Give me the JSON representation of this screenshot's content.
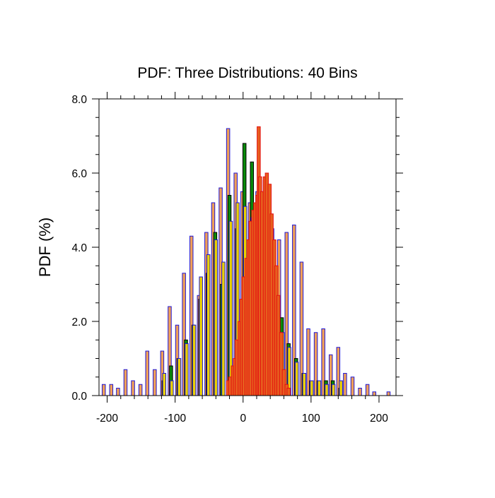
{
  "chart_data": {
    "type": "bar",
    "title": "PDF: Three Distributions: 40 Bins",
    "xlabel": "",
    "ylabel": "PDF (%)",
    "xlim": [
      -212,
      225
    ],
    "ylim": [
      0,
      8
    ],
    "x_ticks": [
      -200,
      -100,
      0,
      100,
      200
    ],
    "x_tick_labels": [
      "-200",
      "-100",
      "0",
      "100",
      "200"
    ],
    "y_ticks": [
      0,
      2,
      4,
      6,
      8
    ],
    "y_tick_labels": [
      "0.0",
      "2.0",
      "4.0",
      "6.0",
      "8.0"
    ],
    "legend": "none",
    "grid": false,
    "series": [
      {
        "fill": "#f0a057",
        "edge": "#1f16d6",
        "points": [
          [
            -205,
            0.3
          ],
          [
            -194,
            0.3
          ],
          [
            -184,
            0.2
          ],
          [
            -173,
            0.7
          ],
          [
            -162,
            0.4
          ],
          [
            -151,
            0.3
          ],
          [
            -141,
            1.2
          ],
          [
            -130,
            0.7
          ],
          [
            -119,
            1.2
          ],
          [
            -108,
            2.4
          ],
          [
            -97,
            1.9
          ],
          [
            -87,
            3.3
          ],
          [
            -76,
            4.3
          ],
          [
            -65,
            2.7
          ],
          [
            -54,
            4.4
          ],
          [
            -44,
            5.2
          ],
          [
            -33,
            5.6
          ],
          [
            -22,
            7.2
          ],
          [
            -11,
            6.0
          ],
          [
            -1,
            5.5
          ],
          [
            10,
            5.2
          ],
          [
            21,
            5.5
          ],
          [
            32,
            5.8
          ],
          [
            43,
            4.5
          ],
          [
            53,
            4.2
          ],
          [
            64,
            4.4
          ],
          [
            75,
            4.6
          ],
          [
            86,
            3.6
          ],
          [
            96,
            1.8
          ],
          [
            107,
            1.7
          ],
          [
            118,
            1.8
          ],
          [
            129,
            1.1
          ],
          [
            140,
            1.3
          ],
          [
            150,
            0.6
          ],
          [
            161,
            0.5
          ],
          [
            172,
            0.2
          ],
          [
            183,
            0.3
          ],
          [
            193,
            0.1
          ],
          [
            214,
            0.1
          ]
        ]
      },
      {
        "fill": "#0a8a0a",
        "edge": "#000000",
        "points": [
          [
            -117,
            0.4
          ],
          [
            -106,
            0.8
          ],
          [
            -95,
            1.0
          ],
          [
            -84,
            1.5
          ],
          [
            -73,
            1.9
          ],
          [
            -63,
            2.6
          ],
          [
            -52,
            3.3
          ],
          [
            -41,
            4.4
          ],
          [
            -31,
            3.0
          ],
          [
            -20,
            5.4
          ],
          [
            -9,
            4.5
          ],
          [
            2,
            6.8
          ],
          [
            13,
            6.3
          ],
          [
            24,
            5.4
          ],
          [
            35,
            4.4
          ],
          [
            46,
            3.1
          ],
          [
            57,
            2.1
          ],
          [
            67,
            1.4
          ],
          [
            78,
            1.0
          ],
          [
            89,
            0.6
          ],
          [
            100,
            0.4
          ],
          [
            111,
            0.4
          ],
          [
            122,
            0.4
          ],
          [
            132,
            0.4
          ],
          [
            143,
            0.2
          ]
        ]
      },
      {
        "fill": "#e9d000",
        "edge": "#1f16d6",
        "points": [
          [
            -116,
            0.6
          ],
          [
            -105,
            0.4
          ],
          [
            -94,
            1.0
          ],
          [
            -83,
            1.4
          ],
          [
            -72,
            1.9
          ],
          [
            -62,
            3.2
          ],
          [
            -51,
            3.8
          ],
          [
            -40,
            4.2
          ],
          [
            -29,
            3.6
          ],
          [
            -18,
            4.7
          ],
          [
            -8,
            5.2
          ],
          [
            3,
            5.1
          ],
          [
            14,
            4.8
          ],
          [
            25,
            4.4
          ],
          [
            36,
            3.3
          ],
          [
            47,
            2.4
          ],
          [
            58,
            1.7
          ],
          [
            68,
            1.3
          ],
          [
            79,
            0.9
          ],
          [
            90,
            0.6
          ],
          [
            101,
            0.4
          ],
          [
            112,
            0.4
          ],
          [
            123,
            0.3
          ],
          [
            133,
            0.3
          ],
          [
            144,
            0.4
          ]
        ]
      },
      {
        "fill": "#e65f1e",
        "edge": "#e41010",
        "points": [
          [
            -22,
            0.4
          ],
          [
            -19,
            0.5
          ],
          [
            -15,
            0.8
          ],
          [
            -12,
            1.0
          ],
          [
            -9,
            1.5
          ],
          [
            -5,
            2.0
          ],
          [
            -2,
            2.6
          ],
          [
            1,
            3.2
          ],
          [
            5,
            3.7
          ],
          [
            8,
            4.2
          ],
          [
            11,
            4.7
          ],
          [
            15,
            5.0
          ],
          [
            18,
            5.2
          ],
          [
            21,
            5.4
          ],
          [
            23,
            7.25
          ],
          [
            25,
            5.9
          ],
          [
            28,
            5.5
          ],
          [
            32,
            5.9
          ],
          [
            35,
            6.0
          ],
          [
            39,
            5.7
          ],
          [
            42,
            4.9
          ],
          [
            46,
            4.2
          ],
          [
            49,
            3.5
          ],
          [
            52,
            2.7
          ],
          [
            56,
            1.7
          ],
          [
            60,
            0.7
          ],
          [
            64,
            0.3
          ],
          [
            67,
            0.2
          ]
        ]
      }
    ]
  }
}
